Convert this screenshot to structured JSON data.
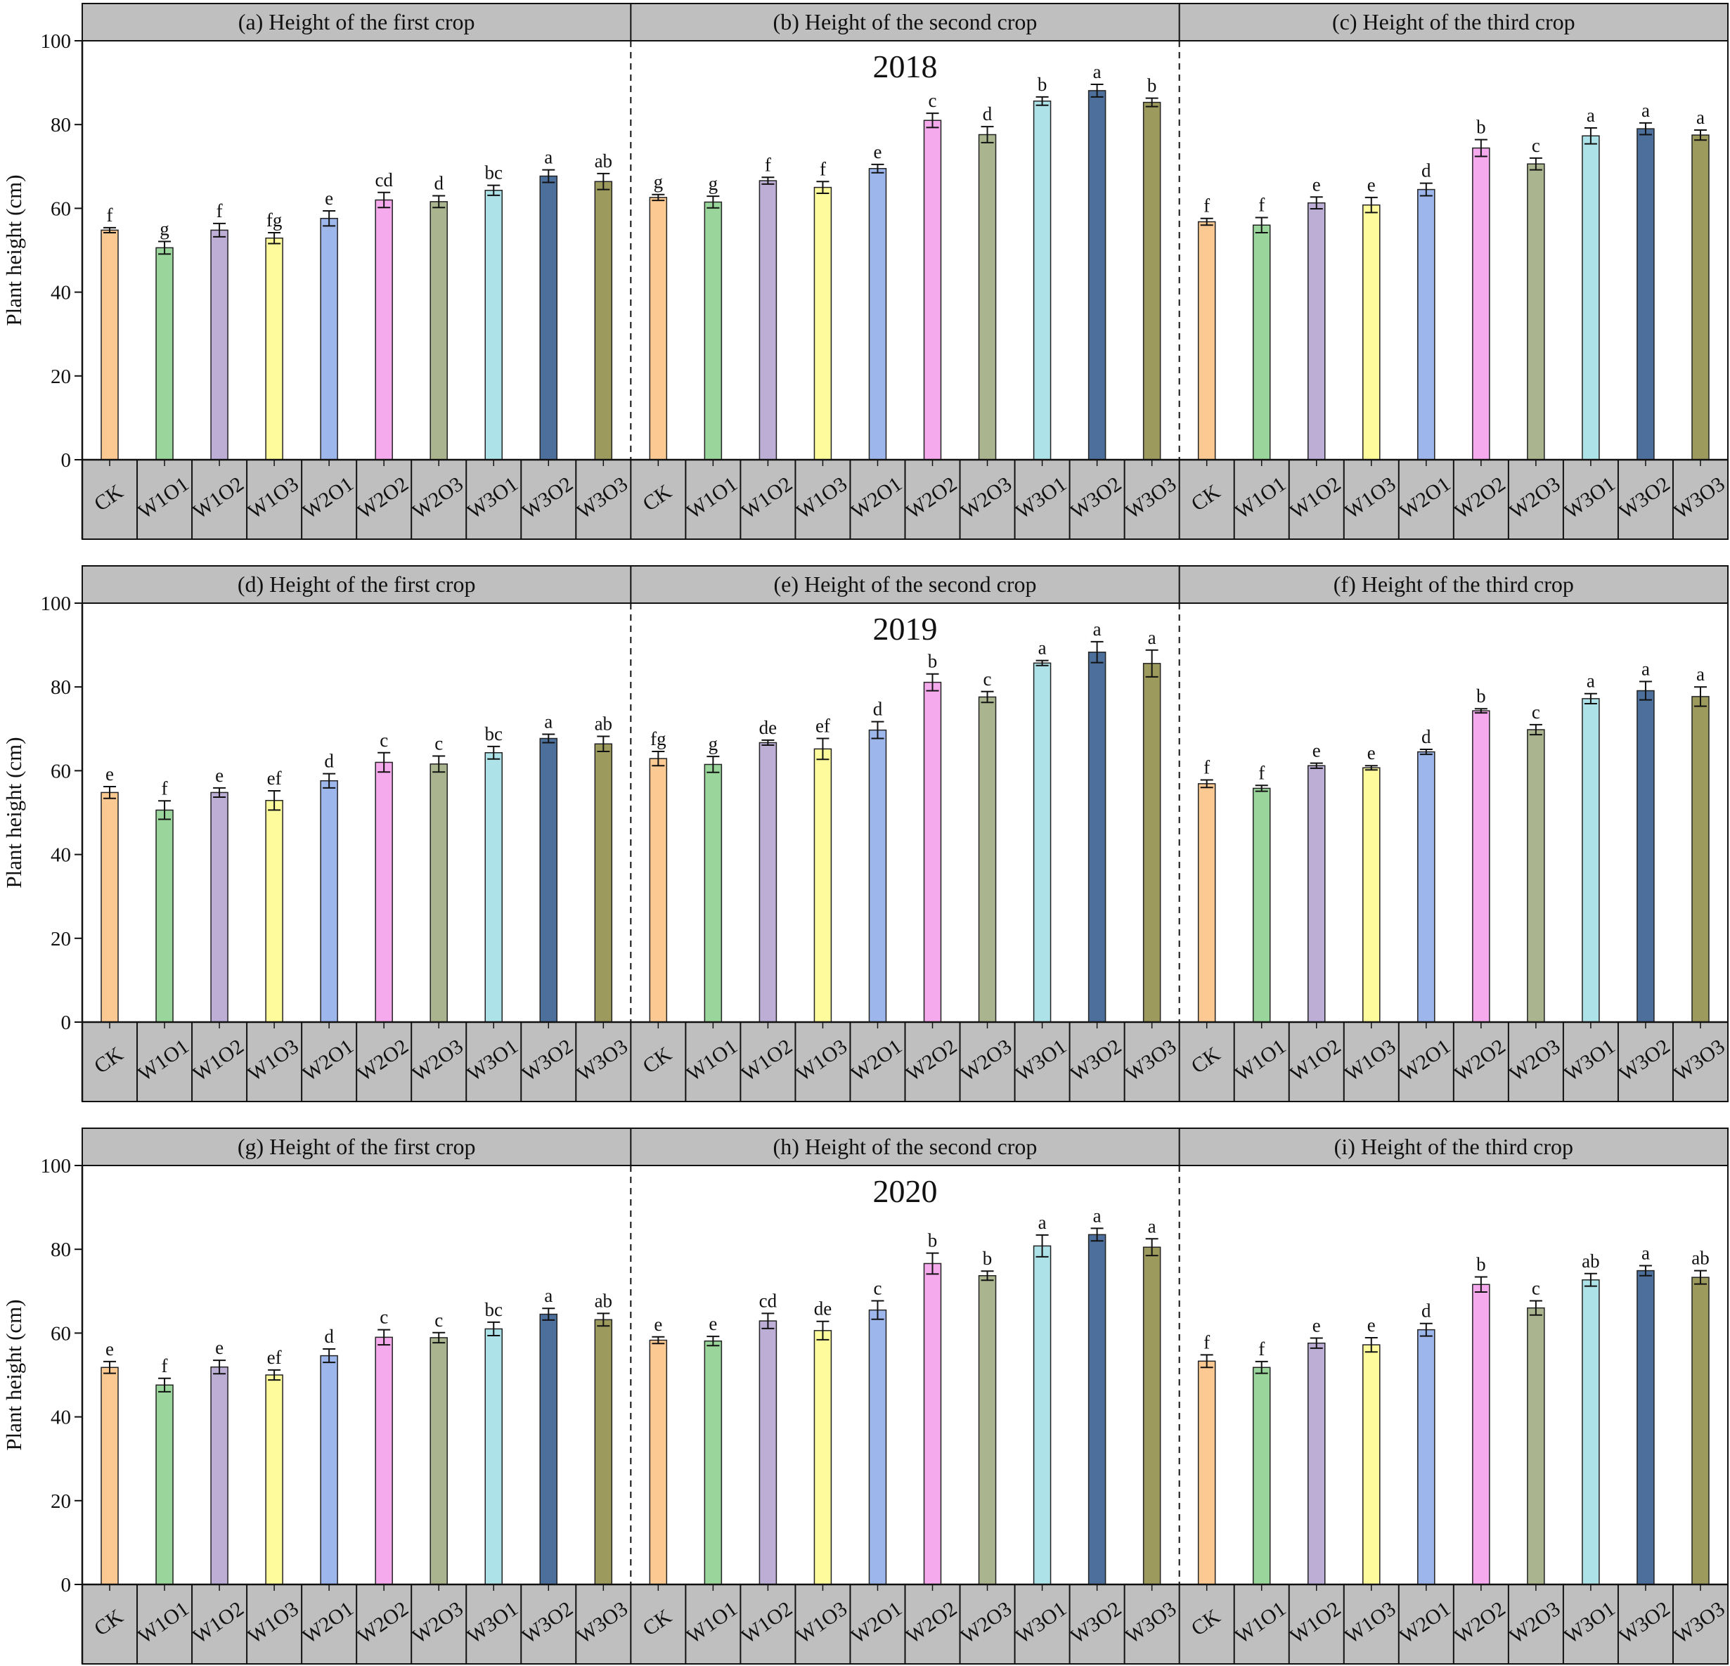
{
  "y_axis": {
    "label": "Plant height (cm)",
    "ticks": [
      0,
      20,
      40,
      60,
      80,
      100
    ],
    "range": [
      0,
      100
    ]
  },
  "categories": [
    "CK",
    "W1O1",
    "W1O2",
    "W1O3",
    "W2O1",
    "W2O2",
    "W2O3",
    "W3O1",
    "W3O2",
    "W3O3"
  ],
  "colors": {
    "CK": "#fdc993",
    "W1O1": "#9ad59b",
    "W1O2": "#bcaed4",
    "W1O3": "#fdfb9c",
    "W2O1": "#9db6ec",
    "W2O2": "#f6aaee",
    "W2O3": "#aab48e",
    "W3O1": "#ade2e8",
    "W3O2": "#4c709b",
    "W3O3": "#9c9a5d",
    "strip_fill": "#bfbfbf"
  },
  "chart_data": [
    {
      "type": "bar",
      "year": "2018",
      "grid": false,
      "panels": [
        {
          "title": "(a) Height of the first crop",
          "values": [
            54.8,
            50.6,
            54.8,
            52.9,
            57.6,
            62.0,
            61.6,
            64.3,
            67.7,
            66.4
          ],
          "errors": [
            0.6,
            1.5,
            1.6,
            1.3,
            1.8,
            1.8,
            1.4,
            1.2,
            1.5,
            1.9
          ],
          "letters": [
            "f",
            "g",
            "f",
            "fg",
            "e",
            "cd",
            "d",
            "bc",
            "a",
            "ab"
          ]
        },
        {
          "title": "(b) Height of the second crop",
          "values": [
            62.6,
            61.5,
            66.6,
            65.0,
            69.5,
            81.0,
            77.6,
            85.6,
            88.1,
            85.3
          ],
          "errors": [
            0.7,
            1.4,
            0.8,
            1.4,
            1.0,
            1.7,
            1.9,
            1.0,
            1.5,
            1.0
          ],
          "letters": [
            "g",
            "g",
            "f",
            "f",
            "e",
            "c",
            "d",
            "b",
            "a",
            "b"
          ]
        },
        {
          "title": "(c) Height of the third crop",
          "values": [
            56.8,
            56.0,
            61.3,
            60.8,
            64.5,
            74.4,
            70.6,
            77.3,
            79.0,
            77.5
          ],
          "errors": [
            0.8,
            1.8,
            1.4,
            1.8,
            1.5,
            2.0,
            1.4,
            1.9,
            1.4,
            1.2
          ],
          "letters": [
            "f",
            "f",
            "e",
            "e",
            "d",
            "b",
            "c",
            "a",
            "a",
            "a"
          ]
        }
      ]
    },
    {
      "type": "bar",
      "year": "2019",
      "grid": false,
      "panels": [
        {
          "title": "(d) Height of the first crop",
          "values": [
            54.8,
            50.6,
            54.8,
            52.9,
            57.6,
            62.0,
            61.6,
            64.3,
            67.7,
            66.4
          ],
          "errors": [
            1.4,
            2.2,
            1.1,
            2.3,
            1.7,
            2.3,
            1.9,
            1.5,
            1.0,
            1.8
          ],
          "letters": [
            "e",
            "f",
            "e",
            "ef",
            "d",
            "c",
            "c",
            "bc",
            "a",
            "ab"
          ]
        },
        {
          "title": "(e) Height of the second crop",
          "values": [
            62.9,
            61.5,
            66.7,
            65.2,
            69.7,
            81.1,
            77.6,
            85.7,
            88.3,
            85.6
          ],
          "errors": [
            1.7,
            1.9,
            0.6,
            2.5,
            2.0,
            2.0,
            1.3,
            0.6,
            2.5,
            3.2
          ],
          "letters": [
            "fg",
            "g",
            "de",
            "ef",
            "d",
            "b",
            "c",
            "a",
            "a",
            "a"
          ]
        },
        {
          "title": "(f) Height of the third crop",
          "values": [
            56.9,
            55.8,
            61.2,
            60.7,
            64.5,
            74.3,
            69.8,
            77.2,
            79.1,
            77.7
          ],
          "errors": [
            0.9,
            0.7,
            0.6,
            0.5,
            0.6,
            0.5,
            1.2,
            1.2,
            2.2,
            2.3
          ],
          "letters": [
            "f",
            "f",
            "e",
            "e",
            "d",
            "b",
            "c",
            "a",
            "a",
            "a"
          ]
        }
      ]
    },
    {
      "type": "bar",
      "year": "2020",
      "grid": false,
      "panels": [
        {
          "title": "(g) Height of the first crop",
          "values": [
            51.8,
            47.6,
            51.9,
            50.0,
            54.6,
            59.0,
            58.9,
            61.0,
            64.5,
            63.2
          ],
          "errors": [
            1.4,
            1.6,
            1.6,
            1.2,
            1.6,
            1.8,
            1.2,
            1.6,
            1.4,
            1.5
          ],
          "letters": [
            "e",
            "f",
            "e",
            "ef",
            "d",
            "c",
            "c",
            "bc",
            "a",
            "ab"
          ]
        },
        {
          "title": "(h) Height of the second crop",
          "values": [
            58.3,
            58.1,
            62.9,
            60.6,
            65.5,
            76.6,
            73.7,
            80.8,
            83.5,
            80.5
          ],
          "errors": [
            0.8,
            1.1,
            1.8,
            2.2,
            2.2,
            2.5,
            1.1,
            2.6,
            1.5,
            2.0
          ],
          "letters": [
            "e",
            "e",
            "cd",
            "de",
            "c",
            "b",
            "b",
            "a",
            "a",
            "a"
          ]
        },
        {
          "title": "(i) Height of the third crop",
          "values": [
            53.3,
            51.8,
            57.6,
            57.2,
            60.8,
            71.6,
            66.0,
            72.7,
            74.9,
            73.3
          ],
          "errors": [
            1.5,
            1.4,
            1.2,
            1.7,
            1.5,
            1.8,
            1.7,
            1.5,
            1.2,
            1.6
          ],
          "letters": [
            "f",
            "f",
            "e",
            "e",
            "d",
            "b",
            "c",
            "ab",
            "a",
            "ab"
          ]
        }
      ]
    }
  ]
}
